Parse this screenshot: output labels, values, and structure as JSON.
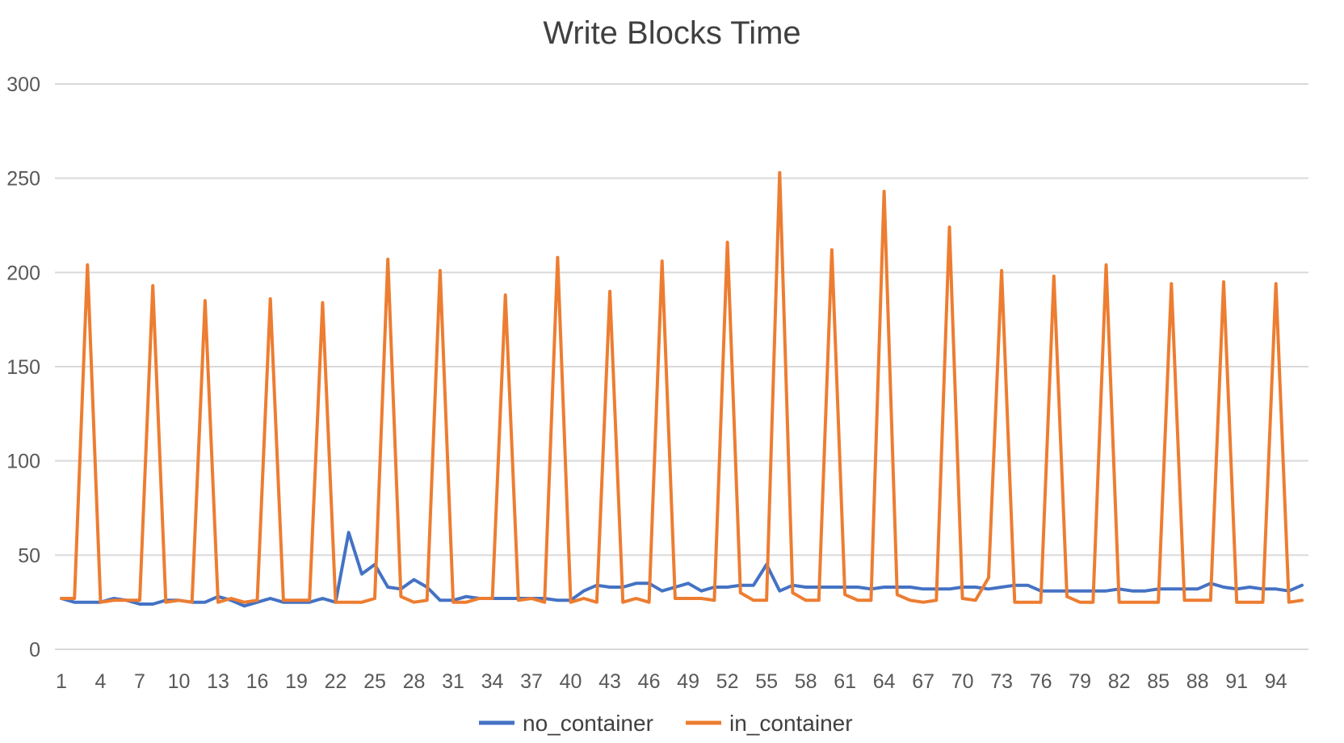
{
  "chart_data": {
    "type": "line",
    "title": "Write Blocks Time",
    "xlabel": "",
    "ylabel": "",
    "ylim": [
      0,
      300
    ],
    "y_ticks": [
      0,
      50,
      100,
      150,
      200,
      250,
      300
    ],
    "x_tick_labels": [
      "1",
      "4",
      "7",
      "10",
      "13",
      "16",
      "19",
      "22",
      "25",
      "28",
      "31",
      "34",
      "37",
      "40",
      "43",
      "46",
      "49",
      "52",
      "55",
      "58",
      "61",
      "64",
      "67",
      "70",
      "73",
      "76",
      "79",
      "82",
      "85",
      "88",
      "91",
      "94"
    ],
    "grid": true,
    "legend_position": "bottom",
    "x": [
      1,
      2,
      3,
      4,
      5,
      6,
      7,
      8,
      9,
      10,
      11,
      12,
      13,
      14,
      15,
      16,
      17,
      18,
      19,
      20,
      21,
      22,
      23,
      24,
      25,
      26,
      27,
      28,
      29,
      30,
      31,
      32,
      33,
      34,
      35,
      36,
      37,
      38,
      39,
      40,
      41,
      42,
      43,
      44,
      45,
      46,
      47,
      48,
      49,
      50,
      51,
      52,
      53,
      54,
      55,
      56,
      57,
      58,
      59,
      60,
      61,
      62,
      63,
      64,
      65,
      66,
      67,
      68,
      69,
      70,
      71,
      72,
      73,
      74,
      75,
      76,
      77,
      78,
      79,
      80,
      81,
      82,
      83,
      84,
      85,
      86,
      87,
      88,
      89,
      90,
      91,
      92,
      93,
      94,
      95,
      96
    ],
    "series": [
      {
        "name": "no_container",
        "color": "#4472C4",
        "values": [
          27,
          25,
          25,
          25,
          27,
          26,
          24,
          24,
          26,
          26,
          25,
          25,
          28,
          26,
          23,
          25,
          27,
          25,
          25,
          25,
          27,
          25,
          62,
          40,
          45,
          33,
          32,
          37,
          33,
          26,
          26,
          28,
          27,
          27,
          27,
          27,
          27,
          27,
          26,
          26,
          31,
          34,
          33,
          33,
          35,
          35,
          31,
          33,
          35,
          31,
          33,
          33,
          34,
          34,
          45,
          31,
          34,
          33,
          33,
          33,
          33,
          33,
          32,
          33,
          33,
          33,
          32,
          32,
          32,
          33,
          33,
          32,
          33,
          34,
          34,
          31,
          31,
          31,
          31,
          31,
          31,
          32,
          31,
          31,
          32,
          32,
          32,
          32,
          35,
          33,
          32,
          33,
          32,
          32,
          31,
          34
        ]
      },
      {
        "name": "in_container",
        "color": "#ED7D31",
        "values": [
          27,
          27,
          204,
          25,
          26,
          26,
          26,
          193,
          25,
          26,
          25,
          185,
          25,
          27,
          25,
          26,
          186,
          26,
          26,
          26,
          184,
          25,
          25,
          25,
          27,
          207,
          28,
          25,
          26,
          201,
          25,
          25,
          27,
          27,
          188,
          26,
          27,
          25,
          208,
          25,
          27,
          25,
          190,
          25,
          27,
          25,
          206,
          27,
          27,
          27,
          26,
          216,
          30,
          26,
          26,
          253,
          30,
          26,
          26,
          212,
          29,
          26,
          26,
          243,
          29,
          26,
          25,
          26,
          224,
          27,
          26,
          38,
          201,
          25,
          25,
          25,
          198,
          28,
          25,
          25,
          204,
          25,
          25,
          25,
          25,
          194,
          26,
          26,
          26,
          195,
          25,
          25,
          25,
          194,
          25,
          26
        ]
      }
    ]
  }
}
